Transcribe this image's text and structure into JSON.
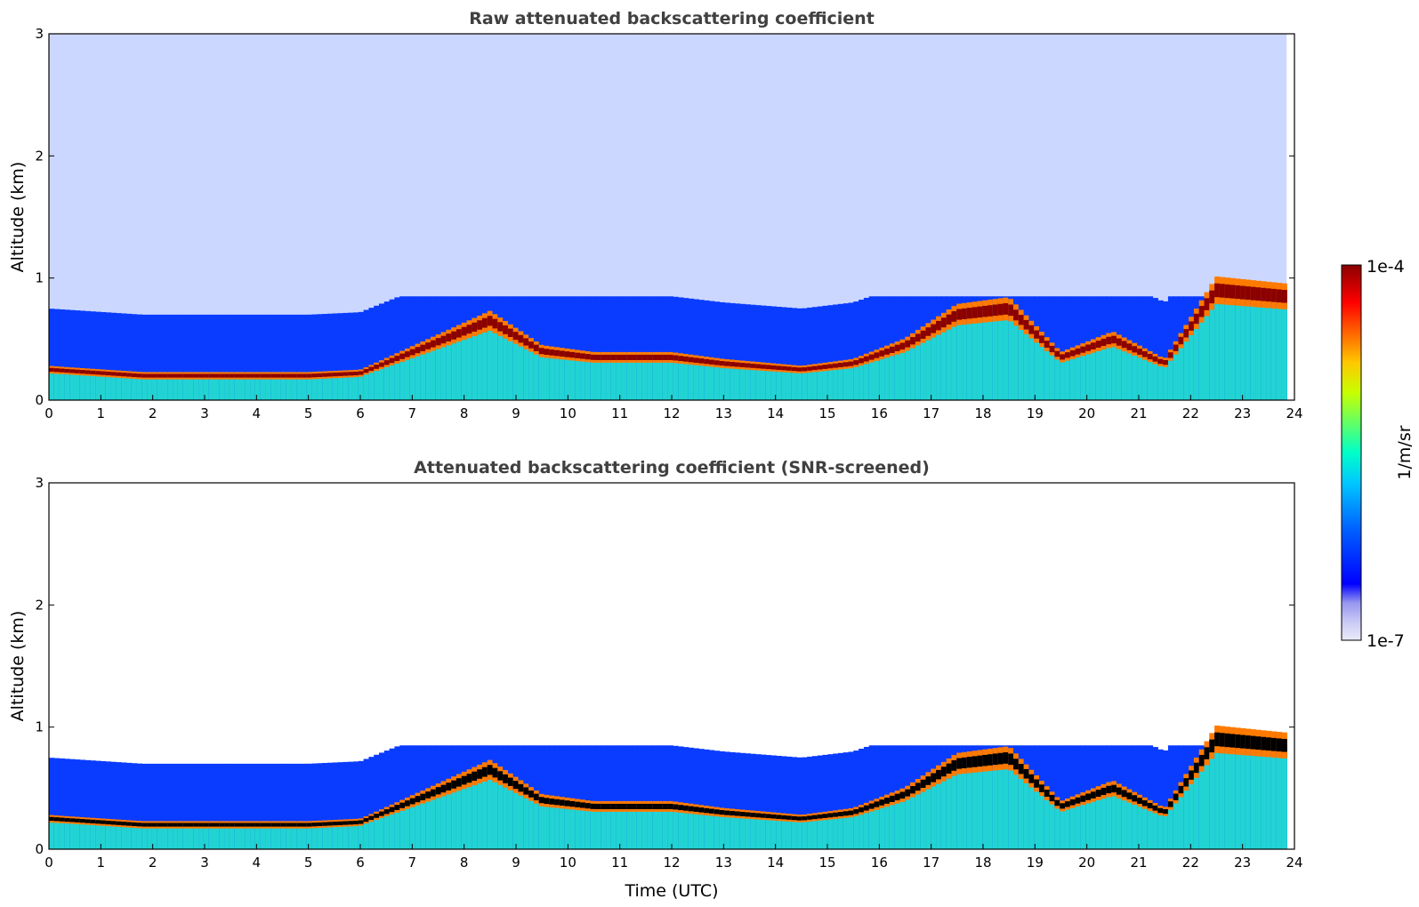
{
  "chart_data": [
    {
      "type": "heatmap",
      "title": "Raw attenuated backscattering coefficient",
      "xlabel": "",
      "ylabel": "Altitude (km)",
      "xlim": [
        0,
        24
      ],
      "ylim": [
        0,
        3
      ],
      "xticks": [
        "0",
        "1",
        "2",
        "3",
        "4",
        "5",
        "6",
        "7",
        "8",
        "9",
        "10",
        "11",
        "12",
        "13",
        "14",
        "15",
        "16",
        "17",
        "18",
        "19",
        "20",
        "21",
        "22",
        "23",
        "24"
      ],
      "yticks": [
        "0",
        "1",
        "2",
        "3"
      ],
      "boundary_layer_top_km": [
        {
          "t": 0,
          "h": 0.25
        },
        {
          "t": 1.8,
          "h": 0.2
        },
        {
          "t": 3,
          "h": 0.2
        },
        {
          "t": 5,
          "h": 0.2
        },
        {
          "t": 6,
          "h": 0.22
        },
        {
          "t": 8.5,
          "h": 0.65
        },
        {
          "t": 9.5,
          "h": 0.4
        },
        {
          "t": 10.5,
          "h": 0.35
        },
        {
          "t": 12,
          "h": 0.35
        },
        {
          "t": 13,
          "h": 0.3
        },
        {
          "t": 14.5,
          "h": 0.25
        },
        {
          "t": 15.5,
          "h": 0.3
        },
        {
          "t": 16.5,
          "h": 0.45
        },
        {
          "t": 17.5,
          "h": 0.7
        },
        {
          "t": 18.5,
          "h": 0.75
        },
        {
          "t": 19.5,
          "h": 0.35
        },
        {
          "t": 20.5,
          "h": 0.5
        },
        {
          "t": 21.5,
          "h": 0.3
        },
        {
          "t": 22.5,
          "h": 0.9
        },
        {
          "t": 23.8,
          "h": 0.85
        }
      ]
    },
    {
      "type": "heatmap",
      "title": "Attenuated backscattering coefficient (SNR-screened)",
      "xlabel": "Time (UTC)",
      "ylabel": "Altitude (km)",
      "xlim": [
        0,
        24
      ],
      "ylim": [
        0,
        3
      ],
      "xticks": [
        "0",
        "1",
        "2",
        "3",
        "4",
        "5",
        "6",
        "7",
        "8",
        "9",
        "10",
        "11",
        "12",
        "13",
        "14",
        "15",
        "16",
        "17",
        "18",
        "19",
        "20",
        "21",
        "22",
        "23",
        "24"
      ],
      "yticks": [
        "0",
        "1",
        "2",
        "3"
      ],
      "boundary_layer_top_km": [
        {
          "t": 0,
          "h": 0.25
        },
        {
          "t": 1.8,
          "h": 0.2
        },
        {
          "t": 3,
          "h": 0.2
        },
        {
          "t": 5,
          "h": 0.2
        },
        {
          "t": 6,
          "h": 0.22
        },
        {
          "t": 8.5,
          "h": 0.65
        },
        {
          "t": 9.5,
          "h": 0.4
        },
        {
          "t": 10.5,
          "h": 0.35
        },
        {
          "t": 12,
          "h": 0.35
        },
        {
          "t": 13,
          "h": 0.3
        },
        {
          "t": 14.5,
          "h": 0.25
        },
        {
          "t": 15.5,
          "h": 0.3
        },
        {
          "t": 16.5,
          "h": 0.45
        },
        {
          "t": 17.5,
          "h": 0.7
        },
        {
          "t": 18.5,
          "h": 0.75
        },
        {
          "t": 19.5,
          "h": 0.35
        },
        {
          "t": 20.5,
          "h": 0.5
        },
        {
          "t": 21.5,
          "h": 0.3
        },
        {
          "t": 22.5,
          "h": 0.9
        },
        {
          "t": 23.8,
          "h": 0.85
        }
      ]
    }
  ],
  "colorbar": {
    "label": "1/m/sr",
    "max_label": "1e-4",
    "min_label": "1e-7",
    "colors": [
      "#ebebfa",
      "#c8c8f5",
      "#9696f0",
      "#0000ff",
      "#0064ff",
      "#00c8ff",
      "#00ffc8",
      "#64ff64",
      "#c8ff00",
      "#ffc800",
      "#ff6400",
      "#ff0000",
      "#8b0000"
    ]
  }
}
